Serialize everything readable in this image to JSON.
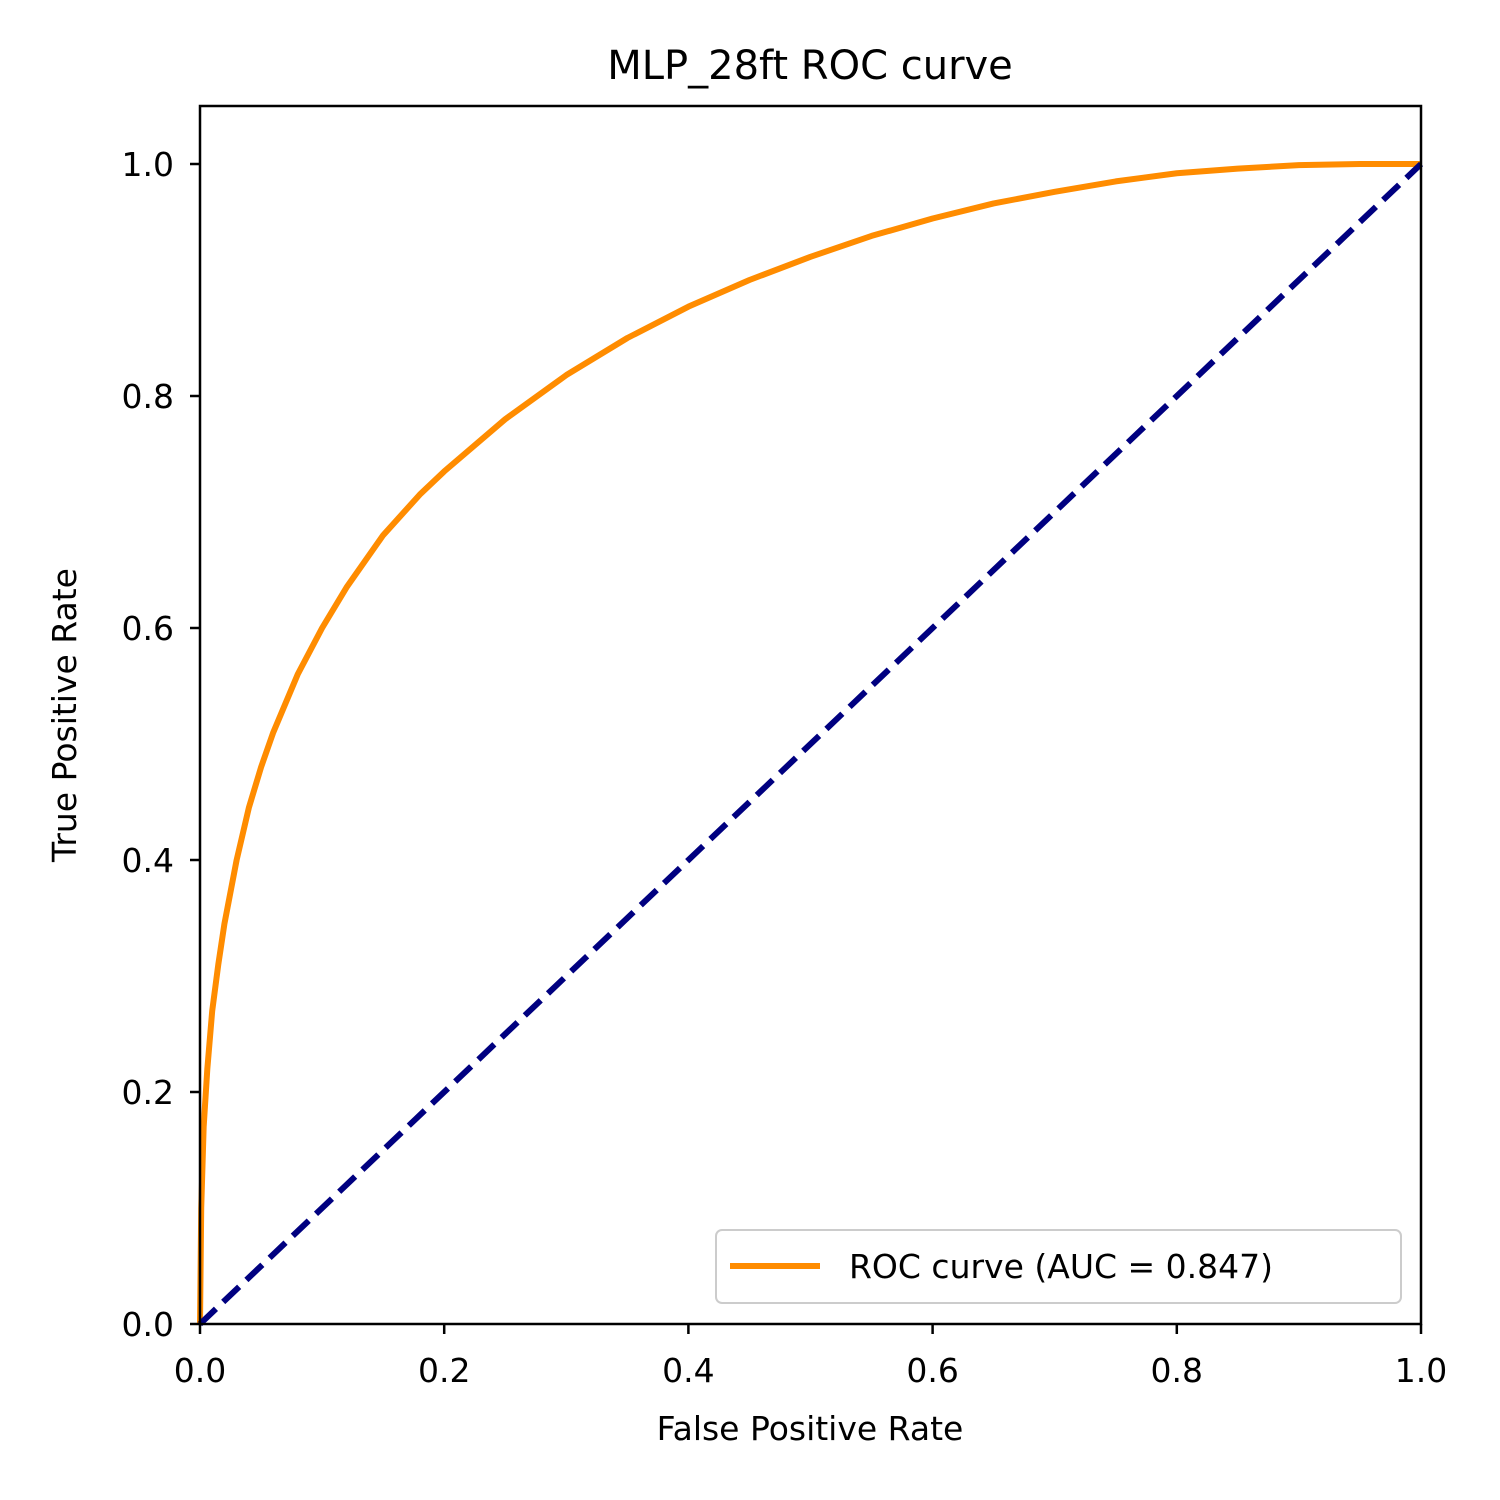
{
  "chart_data": {
    "type": "line",
    "title": "MLP_28ft ROC curve",
    "xlabel": "False Positive Rate",
    "ylabel": "True Positive Rate",
    "xlim": [
      0.0,
      1.0
    ],
    "ylim": [
      0.0,
      1.05
    ],
    "x_ticks": [
      "0.0",
      "0.2",
      "0.4",
      "0.6",
      "0.8",
      "1.0"
    ],
    "y_ticks": [
      "0.0",
      "0.2",
      "0.4",
      "0.6",
      "0.8",
      "1.0"
    ],
    "grid": false,
    "legend_position": "lower-right",
    "series": [
      {
        "name": "ROC curve (AUC = 0.847)",
        "color": "#ff8c00",
        "style": "solid",
        "x": [
          0.0,
          0.001,
          0.003,
          0.006,
          0.01,
          0.015,
          0.02,
          0.03,
          0.04,
          0.05,
          0.06,
          0.08,
          0.1,
          0.12,
          0.15,
          0.18,
          0.2,
          0.25,
          0.3,
          0.35,
          0.4,
          0.45,
          0.5,
          0.55,
          0.6,
          0.65,
          0.7,
          0.75,
          0.8,
          0.85,
          0.9,
          0.95,
          1.0
        ],
        "y": [
          0.0,
          0.1,
          0.17,
          0.22,
          0.27,
          0.31,
          0.345,
          0.4,
          0.445,
          0.48,
          0.51,
          0.56,
          0.6,
          0.635,
          0.68,
          0.715,
          0.735,
          0.78,
          0.818,
          0.85,
          0.877,
          0.9,
          0.92,
          0.938,
          0.953,
          0.966,
          0.976,
          0.985,
          0.992,
          0.996,
          0.999,
          1.0,
          1.0
        ]
      },
      {
        "name": "",
        "color": "#000080",
        "style": "dashed",
        "x": [
          0.0,
          1.0
        ],
        "y": [
          0.0,
          1.0
        ]
      }
    ]
  }
}
